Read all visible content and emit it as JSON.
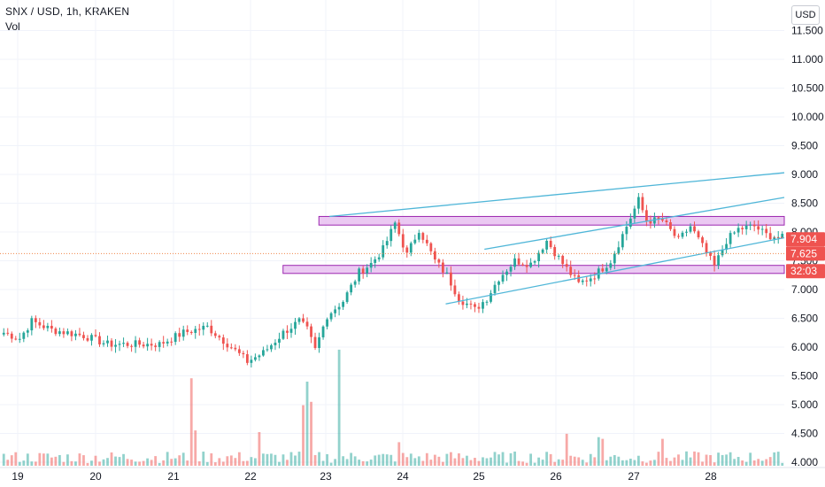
{
  "header": {
    "title": "SNX / USD, 1h, KRAKEN",
    "volume_label": "Vol",
    "currency_button": "USD"
  },
  "price_tags": {
    "last_price": "7.904",
    "reference_price": "7.625",
    "countdown": "32:03"
  },
  "colors": {
    "up": "#26a69a",
    "down": "#ef5350",
    "trendline": "#4fb6d8",
    "zone_fill": "#e8c0f0",
    "zone_border": "#9c27b0",
    "price_tag": "#ef5350",
    "ref_line": "#f0874b",
    "grid": "#f0f3fa"
  },
  "chart_data": {
    "type": "candlestick",
    "title": "SNX / USD, 1h, KRAKEN",
    "ylim": [
      4.0,
      11.7
    ],
    "y_ticks": [
      "4.000",
      "4.500",
      "5.000",
      "5.500",
      "6.000",
      "6.500",
      "7.000",
      "7.500",
      "8.000",
      "8.500",
      "9.000",
      "9.500",
      "10.000",
      "10.500",
      "11.000",
      "11.500"
    ],
    "x_ticks": [
      "19",
      "20",
      "21",
      "22",
      "23",
      "24",
      "25",
      "26",
      "27",
      "28"
    ],
    "grid": true,
    "price_path": [
      [
        0,
        6.25
      ],
      [
        4,
        6.15
      ],
      [
        7,
        6.45
      ],
      [
        12,
        6.3
      ],
      [
        20,
        6.2
      ],
      [
        26,
        6.05
      ],
      [
        33,
        6.05
      ],
      [
        39,
        6.05
      ],
      [
        45,
        6.25
      ],
      [
        51,
        6.35
      ],
      [
        57,
        6.0
      ],
      [
        61,
        5.75
      ],
      [
        65,
        5.9
      ],
      [
        70,
        6.25
      ],
      [
        74,
        6.45
      ],
      [
        76,
        6.3
      ],
      [
        78,
        5.95
      ],
      [
        81,
        6.55
      ],
      [
        85,
        6.8
      ],
      [
        89,
        7.3
      ],
      [
        92,
        7.45
      ],
      [
        95,
        7.7
      ],
      [
        98,
        8.15
      ],
      [
        101,
        7.6
      ],
      [
        104,
        8.05
      ],
      [
        108,
        7.5
      ],
      [
        111,
        7.25
      ],
      [
        114,
        6.85
      ],
      [
        118,
        6.65
      ],
      [
        121,
        6.85
      ],
      [
        124,
        7.2
      ],
      [
        128,
        7.5
      ],
      [
        132,
        7.45
      ],
      [
        136,
        7.85
      ],
      [
        140,
        7.45
      ],
      [
        144,
        7.1
      ],
      [
        148,
        7.25
      ],
      [
        152,
        7.5
      ],
      [
        156,
        8.1
      ],
      [
        159,
        8.55
      ],
      [
        161,
        8.2
      ],
      [
        165,
        8.2
      ],
      [
        169,
        7.85
      ],
      [
        172,
        8.1
      ],
      [
        175,
        7.75
      ],
      [
        178,
        7.4
      ],
      [
        181,
        7.85
      ],
      [
        184,
        8.05
      ],
      [
        188,
        8.1
      ],
      [
        191,
        7.95
      ],
      [
        195,
        7.9
      ]
    ],
    "volume_spikes": [
      {
        "i": 47,
        "v": 2.6,
        "up": false
      },
      {
        "i": 48,
        "v": 1.05,
        "up": false
      },
      {
        "i": 64,
        "v": 1.0,
        "up": false
      },
      {
        "i": 75,
        "v": 1.8,
        "up": false
      },
      {
        "i": 76,
        "v": 2.5,
        "up": true
      },
      {
        "i": 77,
        "v": 1.9,
        "up": false
      },
      {
        "i": 84,
        "v": 3.45,
        "up": true
      },
      {
        "i": 99,
        "v": 0.7,
        "up": false
      },
      {
        "i": 141,
        "v": 0.95,
        "up": false
      },
      {
        "i": 149,
        "v": 0.85,
        "up": true
      },
      {
        "i": 150,
        "v": 0.8,
        "up": false
      },
      {
        "i": 165,
        "v": 0.8,
        "up": false
      }
    ],
    "zones": [
      {
        "low": 8.12,
        "high": 8.27
      },
      {
        "low": 7.28,
        "high": 7.42
      }
    ],
    "trendlines": [
      {
        "from": [
          "23",
          8.27
        ],
        "to": [
          "end",
          9.03
        ]
      },
      {
        "from": [
          "24.5",
          6.75
        ],
        "to": [
          "end",
          7.9
        ]
      },
      {
        "from": [
          "25",
          7.7
        ],
        "to": [
          "end",
          8.6
        ]
      }
    ],
    "reference_line": 7.625,
    "last_price": 7.904
  }
}
